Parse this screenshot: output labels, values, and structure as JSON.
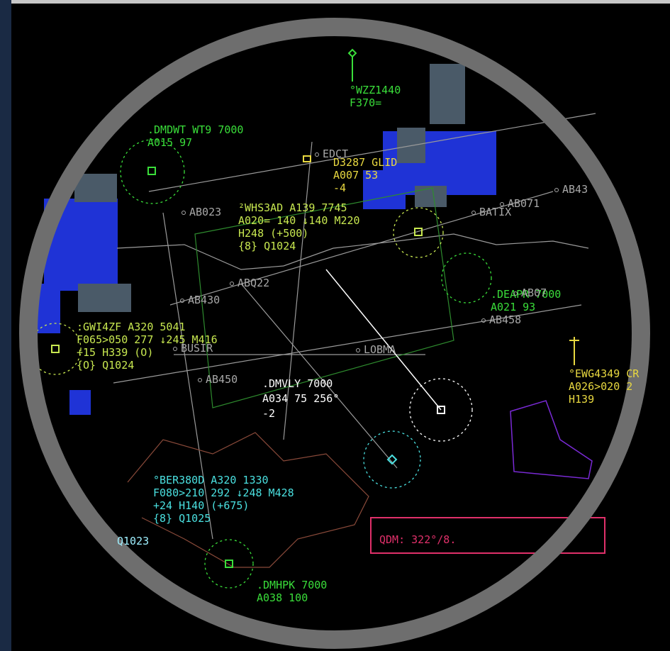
{
  "aircraft": [
    {
      "lines": [
        "°WZZ1440",
        "F370="
      ]
    },
    {
      "lines": [
        ".DMDWT WT9 7000",
        "A015 97"
      ]
    },
    {
      "lines": [
        "D3287 GLID",
        "A007 53",
        "-4"
      ]
    },
    {
      "lines": [
        "²WHS3AD A139 7745",
        "A020= 140 ↓140 M220",
        "H248 (+500)",
        "{8} Q1024"
      ]
    },
    {
      "lines": [
        ".DEAPR 7000",
        "A021 93"
      ]
    },
    {
      "lines": [
        ":GWI4ZF A320 5041",
        "F065>050 277 ↓245 M416",
        "+15 H339 (O)",
        "{O} Q1024"
      ]
    },
    {
      "lines": [
        ".DMVLY 7000",
        "A034 75 256°",
        "-2"
      ]
    },
    {
      "lines": [
        "°EWG4349 CR",
        "A026>020 2",
        "H139"
      ]
    },
    {
      "lines": [
        "°BER380D A320 1330",
        "F080>210 292 ↓248 M428",
        "+24 H140 (+675)",
        "{8} Q1025"
      ]
    },
    {
      "lines": [
        ".DMHPK 7000",
        "A038 100"
      ]
    }
  ],
  "waypoints": [
    "AB023",
    "BATIX",
    "AB071",
    "AB43",
    "AB430",
    "ABQ22",
    "AB458",
    "BUSIR",
    "LOBMA",
    "AB450",
    "EDCT",
    "AB07"
  ],
  "qnh": "Q1023",
  "qdm": "QDM: 322°/8."
}
